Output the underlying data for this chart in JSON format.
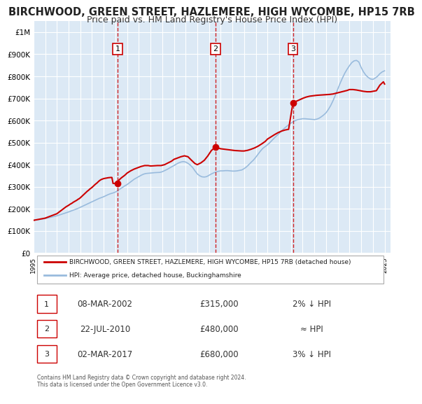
{
  "title": "BIRCHWOOD, GREEN STREET, HAZLEMERE, HIGH WYCOMBE, HP15 7RB",
  "subtitle": "Price paid vs. HM Land Registry's House Price Index (HPI)",
  "title_fontsize": 10.5,
  "subtitle_fontsize": 9,
  "background_color": "#ffffff",
  "plot_bg_color": "#dce9f5",
  "grid_color": "#ffffff",
  "ylim": [
    0,
    1050000
  ],
  "xlim_start": 1995.0,
  "xlim_end": 2025.5,
  "yticks": [
    0,
    100000,
    200000,
    300000,
    400000,
    500000,
    600000,
    700000,
    800000,
    900000,
    1000000
  ],
  "ytick_labels": [
    "£0",
    "£100K",
    "£200K",
    "£300K",
    "£400K",
    "£500K",
    "£600K",
    "£700K",
    "£800K",
    "£900K",
    "£1M"
  ],
  "xticks": [
    1995,
    1996,
    1997,
    1998,
    1999,
    2000,
    2001,
    2002,
    2003,
    2004,
    2005,
    2006,
    2007,
    2008,
    2009,
    2010,
    2011,
    2012,
    2013,
    2014,
    2015,
    2016,
    2017,
    2018,
    2019,
    2020,
    2021,
    2022,
    2023,
    2024,
    2025
  ],
  "sale_color": "#cc0000",
  "hpi_color": "#99bbdd",
  "sale_linewidth": 1.5,
  "hpi_linewidth": 1.2,
  "transaction_markers": [
    {
      "num": 1,
      "year": 2002.19,
      "price": 315000,
      "label": "1",
      "date": "08-MAR-2002",
      "pct": "2%↓ HPI"
    },
    {
      "num": 2,
      "year": 2010.55,
      "price": 480000,
      "label": "2",
      "date": "22-JUL-2010",
      "pct": "≈ HPI"
    },
    {
      "num": 3,
      "year": 2017.17,
      "price": 680000,
      "label": "3",
      "date": "02-MAR-2017",
      "pct": "3%↓ HPI"
    }
  ],
  "vline_color": "#cc0000",
  "marker_box_color": "#cc0000",
  "sale_x": [
    1995.0,
    1995.1,
    1995.2,
    1995.3,
    1995.4,
    1995.5,
    1995.6,
    1995.7,
    1995.8,
    1995.9,
    1996.0,
    1996.1,
    1996.2,
    1996.3,
    1996.4,
    1996.5,
    1996.6,
    1996.7,
    1996.8,
    1996.9,
    1997.0,
    1997.1,
    1997.2,
    1997.3,
    1997.4,
    1997.5,
    1997.6,
    1997.7,
    1997.8,
    1997.9,
    1998.0,
    1998.1,
    1998.2,
    1998.3,
    1998.4,
    1998.5,
    1998.6,
    1998.7,
    1998.8,
    1998.9,
    1999.0,
    1999.1,
    1999.2,
    1999.3,
    1999.4,
    1999.5,
    1999.6,
    1999.7,
    1999.8,
    1999.9,
    2000.0,
    2000.1,
    2000.2,
    2000.3,
    2000.4,
    2000.5,
    2000.6,
    2000.7,
    2000.8,
    2000.9,
    2001.0,
    2001.1,
    2001.2,
    2001.3,
    2001.4,
    2001.5,
    2001.6,
    2001.7,
    2001.8,
    2001.9,
    2002.0,
    2002.2,
    2002.5,
    2002.8,
    2003.0,
    2003.3,
    2003.6,
    2003.9,
    2004.2,
    2004.5,
    2004.8,
    2005.0,
    2005.3,
    2005.6,
    2005.9,
    2006.2,
    2006.5,
    2006.8,
    2007.0,
    2007.3,
    2007.6,
    2007.9,
    2008.2,
    2008.5,
    2008.8,
    2009.0,
    2009.3,
    2009.6,
    2009.9,
    2010.2,
    2010.55,
    2010.8,
    2011.0,
    2011.3,
    2011.6,
    2011.9,
    2012.2,
    2012.5,
    2012.8,
    2013.0,
    2013.3,
    2013.6,
    2013.9,
    2014.2,
    2014.5,
    2014.8,
    2015.0,
    2015.3,
    2015.6,
    2015.9,
    2016.2,
    2016.5,
    2016.8,
    2017.17,
    2017.5,
    2017.8,
    2018.0,
    2018.3,
    2018.6,
    2018.9,
    2019.2,
    2019.5,
    2019.8,
    2020.0,
    2020.3,
    2020.6,
    2020.9,
    2021.2,
    2021.5,
    2021.8,
    2022.0,
    2022.3,
    2022.6,
    2022.9,
    2023.2,
    2023.5,
    2023.8,
    2024.0,
    2024.3,
    2024.6,
    2024.9,
    2025.0
  ],
  "sale_y": [
    148000,
    149000,
    150000,
    151000,
    152000,
    153000,
    154000,
    155000,
    156000,
    157000,
    158000,
    160000,
    162000,
    164000,
    166000,
    168000,
    170000,
    172000,
    174000,
    176000,
    178000,
    182000,
    186000,
    190000,
    194000,
    198000,
    202000,
    206000,
    210000,
    213000,
    216000,
    220000,
    223000,
    226000,
    230000,
    233000,
    236000,
    239000,
    243000,
    246000,
    250000,
    255000,
    260000,
    265000,
    270000,
    275000,
    280000,
    284000,
    289000,
    293000,
    297000,
    302000,
    307000,
    312000,
    316000,
    321000,
    326000,
    330000,
    333000,
    335000,
    337000,
    338000,
    339000,
    340000,
    341000,
    341500,
    342000,
    342000,
    315000,
    315000,
    315100,
    325000,
    340000,
    352000,
    362000,
    372000,
    380000,
    386000,
    392000,
    396000,
    396000,
    394000,
    395000,
    396000,
    396000,
    400000,
    408000,
    416000,
    424000,
    430000,
    436000,
    440000,
    436000,
    420000,
    405000,
    400000,
    408000,
    420000,
    440000,
    464000,
    480000,
    475000,
    472000,
    470000,
    468000,
    466000,
    464000,
    463000,
    462000,
    462000,
    465000,
    470000,
    476000,
    484000,
    494000,
    505000,
    516000,
    526000,
    536000,
    545000,
    552000,
    557000,
    560000,
    680000,
    688000,
    695000,
    700000,
    706000,
    710000,
    712000,
    714000,
    715000,
    716000,
    717000,
    718000,
    720000,
    724000,
    728000,
    732000,
    736000,
    740000,
    740000,
    738000,
    735000,
    732000,
    730000,
    730000,
    732000,
    735000,
    760000,
    775000,
    765000
  ],
  "hpi_x": [
    1995.0,
    1995.2,
    1995.4,
    1995.6,
    1995.8,
    1996.0,
    1996.2,
    1996.4,
    1996.6,
    1996.8,
    1997.0,
    1997.2,
    1997.4,
    1997.6,
    1997.8,
    1998.0,
    1998.2,
    1998.4,
    1998.6,
    1998.8,
    1999.0,
    1999.2,
    1999.4,
    1999.6,
    1999.8,
    2000.0,
    2000.2,
    2000.4,
    2000.6,
    2000.8,
    2001.0,
    2001.2,
    2001.4,
    2001.6,
    2001.8,
    2002.0,
    2002.2,
    2002.4,
    2002.6,
    2002.8,
    2003.0,
    2003.2,
    2003.4,
    2003.6,
    2003.8,
    2004.0,
    2004.2,
    2004.4,
    2004.6,
    2004.8,
    2005.0,
    2005.2,
    2005.4,
    2005.6,
    2005.8,
    2006.0,
    2006.2,
    2006.4,
    2006.6,
    2006.8,
    2007.0,
    2007.2,
    2007.4,
    2007.6,
    2007.8,
    2008.0,
    2008.2,
    2008.4,
    2008.6,
    2008.8,
    2009.0,
    2009.2,
    2009.4,
    2009.6,
    2009.8,
    2010.0,
    2010.2,
    2010.4,
    2010.6,
    2010.8,
    2011.0,
    2011.2,
    2011.4,
    2011.6,
    2011.8,
    2012.0,
    2012.2,
    2012.4,
    2012.6,
    2012.8,
    2013.0,
    2013.2,
    2013.4,
    2013.6,
    2013.8,
    2014.0,
    2014.2,
    2014.4,
    2014.6,
    2014.8,
    2015.0,
    2015.2,
    2015.4,
    2015.6,
    2015.8,
    2016.0,
    2016.2,
    2016.4,
    2016.6,
    2016.8,
    2017.0,
    2017.2,
    2017.4,
    2017.6,
    2017.8,
    2018.0,
    2018.2,
    2018.4,
    2018.6,
    2018.8,
    2019.0,
    2019.2,
    2019.4,
    2019.6,
    2019.8,
    2020.0,
    2020.2,
    2020.4,
    2020.6,
    2020.8,
    2021.0,
    2021.2,
    2021.4,
    2021.6,
    2021.8,
    2022.0,
    2022.2,
    2022.4,
    2022.6,
    2022.8,
    2023.0,
    2023.2,
    2023.4,
    2023.6,
    2023.8,
    2024.0,
    2024.2,
    2024.4,
    2024.6,
    2024.8,
    2025.0
  ],
  "hpi_y": [
    148000,
    149500,
    151000,
    152500,
    154000,
    156000,
    158500,
    161000,
    163500,
    166000,
    168500,
    172000,
    175500,
    179000,
    182500,
    186000,
    190000,
    194000,
    198000,
    202000,
    207000,
    212000,
    217000,
    222000,
    227000,
    232000,
    237000,
    242000,
    247000,
    251000,
    255000,
    260000,
    265000,
    269000,
    272000,
    276000,
    283000,
    290000,
    297000,
    304000,
    310000,
    318000,
    326000,
    334000,
    340000,
    346000,
    352000,
    357000,
    360000,
    361000,
    362000,
    363000,
    364000,
    364500,
    365000,
    368000,
    373000,
    378000,
    384000,
    390000,
    396000,
    402000,
    408000,
    412000,
    414000,
    412000,
    406000,
    398000,
    387000,
    372000,
    358000,
    350000,
    345000,
    344000,
    346000,
    352000,
    358000,
    363000,
    367000,
    370000,
    372000,
    372000,
    373000,
    373000,
    372000,
    371000,
    371000,
    372000,
    374000,
    376000,
    382000,
    390000,
    400000,
    411000,
    421000,
    434000,
    448000,
    462000,
    474000,
    482000,
    490000,
    500000,
    511000,
    522000,
    532000,
    542000,
    553000,
    563000,
    572000,
    580000,
    588000,
    595000,
    600000,
    604000,
    606000,
    608000,
    608000,
    607000,
    606000,
    605000,
    604000,
    606000,
    610000,
    617000,
    625000,
    635000,
    650000,
    668000,
    690000,
    715000,
    742000,
    768000,
    792000,
    814000,
    832000,
    848000,
    862000,
    870000,
    872000,
    865000,
    840000,
    820000,
    805000,
    795000,
    788000,
    786000,
    792000,
    800000,
    812000,
    820000,
    825000
  ],
  "legend_sale_label": "BIRCHWOOD, GREEN STREET, HAZLEMERE, HIGH WYCOMBE, HP15 7RB (detached house)",
  "legend_hpi_label": "HPI: Average price, detached house, Buckinghamshire",
  "footer_text": "Contains HM Land Registry data © Crown copyright and database right 2024.\nThis data is licensed under the Open Government Licence v3.0.",
  "table_rows": [
    {
      "num": "1",
      "date": "08-MAR-2002",
      "price": "£315,000",
      "pct": "2% ↓ HPI"
    },
    {
      "num": "2",
      "date": "22-JUL-2010",
      "price": "£480,000",
      "pct": "≈ HPI"
    },
    {
      "num": "3",
      "date": "02-MAR-2017",
      "price": "£680,000",
      "pct": "3% ↓ HPI"
    }
  ]
}
